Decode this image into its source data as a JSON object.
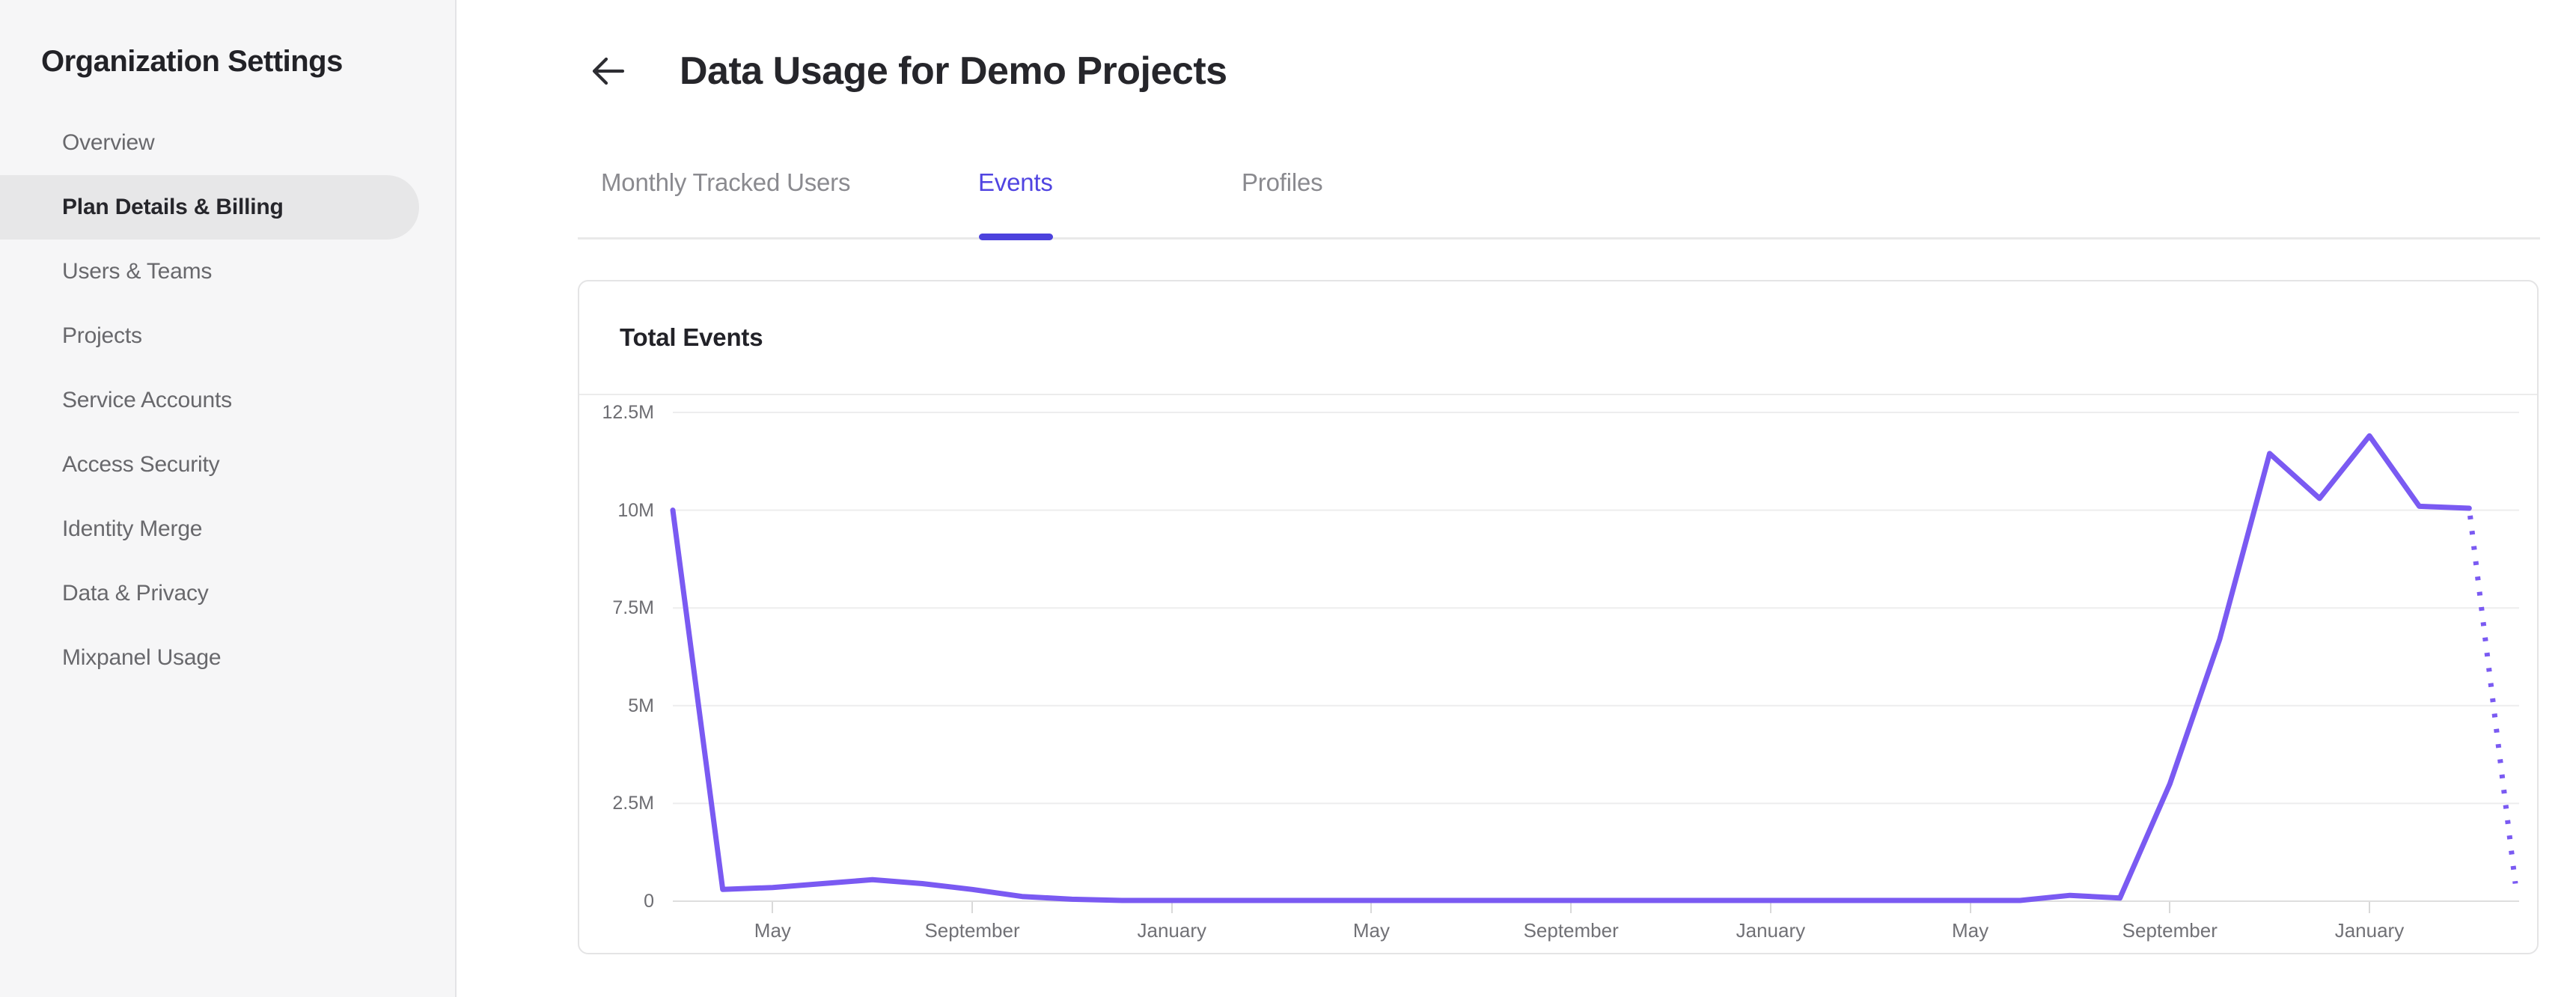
{
  "sidebar": {
    "title": "Organization Settings",
    "items": [
      {
        "label": "Overview",
        "active": false
      },
      {
        "label": "Plan Details & Billing",
        "active": true
      },
      {
        "label": "Users & Teams",
        "active": false
      },
      {
        "label": "Projects",
        "active": false
      },
      {
        "label": "Service Accounts",
        "active": false
      },
      {
        "label": "Access Security",
        "active": false
      },
      {
        "label": "Identity Merge",
        "active": false
      },
      {
        "label": "Data & Privacy",
        "active": false
      },
      {
        "label": "Mixpanel Usage",
        "active": false
      }
    ]
  },
  "header": {
    "title": "Data Usage for Demo Projects",
    "back_icon": "arrow-left"
  },
  "tabs": {
    "items": [
      {
        "label": "Monthly Tracked Users",
        "active": false
      },
      {
        "label": "Events",
        "active": true
      },
      {
        "label": "Profiles",
        "active": false
      }
    ],
    "active_color": "#5044e1"
  },
  "card": {
    "title": "Total Events"
  },
  "chart_data": {
    "type": "line",
    "title": "Total Events",
    "xlabel": "",
    "ylabel": "",
    "ylim": [
      0,
      12.5
    ],
    "y_unit": "millions of events",
    "grid": "horizontal",
    "legend": "none",
    "line_color": "#7a5af2",
    "y_ticks": [
      {
        "label": "12.5M",
        "value": 12.5
      },
      {
        "label": "10M",
        "value": 10
      },
      {
        "label": "7.5M",
        "value": 7.5
      },
      {
        "label": "5M",
        "value": 5
      },
      {
        "label": "2.5M",
        "value": 2.5
      },
      {
        "label": "0",
        "value": 0
      }
    ],
    "x_tick_labels": [
      {
        "index": 2,
        "label": "May"
      },
      {
        "index": 6,
        "label": "September"
      },
      {
        "index": 10,
        "label": "January"
      },
      {
        "index": 14,
        "label": "May"
      },
      {
        "index": 18,
        "label": "September"
      },
      {
        "index": 22,
        "label": "January"
      },
      {
        "index": 26,
        "label": "May"
      },
      {
        "index": 30,
        "label": "September"
      },
      {
        "index": 34,
        "label": "January"
      }
    ],
    "x_cadence": "monthly",
    "series": [
      {
        "name": "Total Events",
        "values_millions": [
          10.0,
          0.3,
          0.35,
          0.45,
          0.55,
          0.45,
          0.3,
          0.12,
          0.05,
          0.02,
          0.02,
          0.02,
          0.02,
          0.02,
          0.02,
          0.02,
          0.02,
          0.02,
          0.02,
          0.02,
          0.02,
          0.02,
          0.02,
          0.02,
          0.02,
          0.02,
          0.02,
          0.02,
          0.15,
          0.08,
          3.0,
          6.7,
          11.45,
          10.3,
          11.9,
          10.1,
          10.05,
          0.45
        ]
      }
    ],
    "last_segment_style": "dotted-projection"
  }
}
